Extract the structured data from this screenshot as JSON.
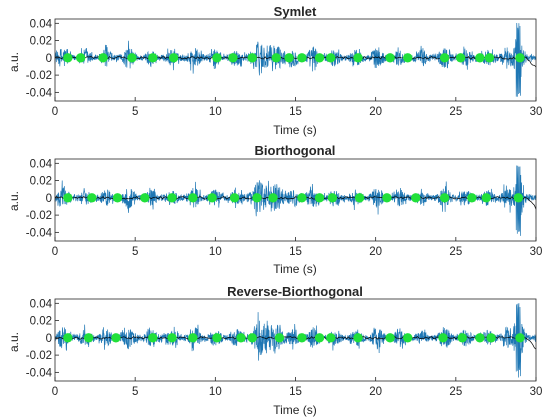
{
  "colors": {
    "signal": "#1f77b4",
    "envelope": "#000000",
    "markers": "#22e03a",
    "axes": "#262626"
  },
  "chart_data": [
    {
      "type": "line",
      "title": "Symlet",
      "xlabel": "Time (s)",
      "ylabel": "a.u.",
      "xlim": [
        0,
        30
      ],
      "ylim": [
        -0.05,
        0.045
      ],
      "xticks": [
        "0",
        "5",
        "10",
        "15",
        "20",
        "25",
        "30"
      ],
      "yticks": [
        "0.04",
        "0.02",
        "0",
        "-0.02",
        "-0.04"
      ],
      "grid": false,
      "series": [
        {
          "role": "signal",
          "color": "#1f77b4"
        },
        {
          "role": "envelope",
          "color": "#000000"
        },
        {
          "role": "markers",
          "color": "#22e03a",
          "x": [
            0.8,
            1.6,
            3.0,
            4.8,
            6.1,
            7.4,
            10.1,
            11.1,
            12.3,
            13.8,
            14.6,
            15.4,
            16.5,
            17.2,
            18.9,
            20.9,
            22.0,
            24.3,
            25.3,
            26.5,
            27.1,
            29.0
          ],
          "y": [
            0,
            0,
            0,
            0,
            0,
            0,
            0,
            0,
            0,
            0,
            0,
            0,
            0,
            0,
            0,
            0,
            0,
            0,
            0,
            0,
            0,
            0
          ]
        }
      ]
    },
    {
      "type": "line",
      "title": "Biorthogonal",
      "xlabel": "Time (s)",
      "ylabel": "a.u.",
      "xlim": [
        0,
        30
      ],
      "ylim": [
        -0.05,
        0.045
      ],
      "xticks": [
        "0",
        "5",
        "10",
        "15",
        "20",
        "25",
        "30"
      ],
      "yticks": [
        "0.04",
        "0.02",
        "0",
        "-0.02",
        "-0.04"
      ],
      "grid": false,
      "series": [
        {
          "role": "signal",
          "color": "#1f77b4"
        },
        {
          "role": "envelope",
          "color": "#000000"
        },
        {
          "role": "markers",
          "color": "#22e03a",
          "x": [
            0.8,
            2.3,
            3.9,
            5.6,
            7.3,
            8.6,
            9.8,
            11.2,
            12.6,
            13.6,
            15.4,
            16.5,
            17.3,
            19.0,
            20.7,
            22.5,
            24.3,
            26.0,
            26.9,
            28.9
          ],
          "y": [
            0,
            0,
            0,
            0,
            0,
            0,
            0,
            0,
            0,
            0,
            0,
            0,
            0,
            0,
            0,
            0,
            0,
            0,
            0,
            0
          ]
        }
      ]
    },
    {
      "type": "line",
      "title": "Reverse-Biorthogonal",
      "xlabel": "Time (s)",
      "ylabel": "a.u.",
      "xlim": [
        0,
        30
      ],
      "ylim": [
        -0.05,
        0.045
      ],
      "xticks": [
        "0",
        "5",
        "10",
        "15",
        "20",
        "25",
        "30"
      ],
      "yticks": [
        "0.04",
        "0.02",
        "0",
        "-0.02",
        "-0.04"
      ],
      "grid": false,
      "series": [
        {
          "role": "signal",
          "color": "#1f77b4"
        },
        {
          "role": "envelope",
          "color": "#000000"
        },
        {
          "role": "markers",
          "color": "#22e03a",
          "x": [
            0.8,
            2.1,
            3.8,
            6.1,
            7.3,
            8.6,
            10.1,
            11.6,
            12.3,
            14.0,
            15.4,
            16.5,
            17.2,
            18.9,
            20.9,
            22.0,
            24.2,
            25.4,
            26.5,
            27.2,
            29.0
          ],
          "y": [
            0,
            0,
            0,
            0,
            0,
            0,
            0,
            0,
            0,
            0,
            0,
            0,
            0,
            0,
            0,
            0,
            0,
            0,
            0,
            0,
            0
          ]
        }
      ]
    }
  ]
}
